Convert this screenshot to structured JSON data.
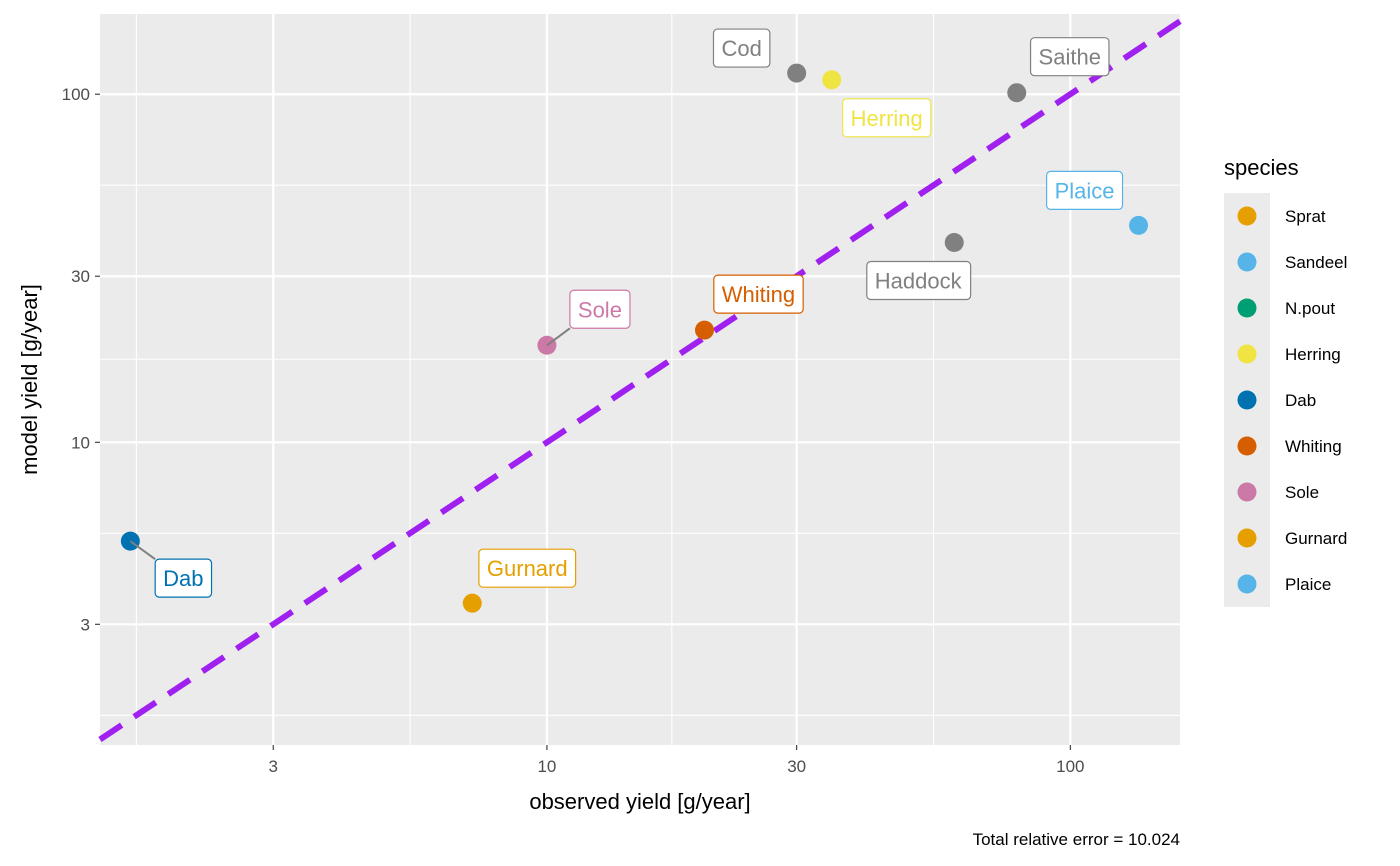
{
  "chart_data": {
    "type": "scatter",
    "title": "",
    "xlabel": "observed yield [g/year]",
    "ylabel": "model yield [g/year]",
    "caption": "Total relative error = 10.024",
    "x_scale": "log",
    "y_scale": "log",
    "xlim": [
      1.4,
      162
    ],
    "ylim": [
      1.35,
      170
    ],
    "x_ticks": [
      3,
      10,
      30,
      100
    ],
    "y_ticks": [
      3,
      10,
      30,
      100
    ],
    "x_tick_labels": [
      "3",
      "10",
      "30",
      "100"
    ],
    "y_tick_labels": [
      "3",
      "10",
      "30",
      "100"
    ],
    "grid": true,
    "reference_line": {
      "kind": "identity",
      "style": "dashed",
      "color": "#a020f0"
    },
    "legend": {
      "title": "species",
      "position": "right",
      "entries": [
        {
          "label": "Sprat",
          "color": "#E69F00"
        },
        {
          "label": "Sandeel",
          "color": "#56B4E9"
        },
        {
          "label": "N.pout",
          "color": "#009E73"
        },
        {
          "label": "Herring",
          "color": "#F0E442"
        },
        {
          "label": "Dab",
          "color": "#0072B2"
        },
        {
          "label": "Whiting",
          "color": "#D55E00"
        },
        {
          "label": "Sole",
          "color": "#CC79A7"
        },
        {
          "label": "Gurnard",
          "color": "#E69F00"
        },
        {
          "label": "Plaice",
          "color": "#56B4E9"
        }
      ]
    },
    "points": [
      {
        "label": "Cod",
        "x": 30,
        "y": 115,
        "color": "#808080"
      },
      {
        "label": "Herring",
        "x": 35,
        "y": 110,
        "color": "#F0E442"
      },
      {
        "label": "Saithe",
        "x": 79,
        "y": 101,
        "color": "#808080"
      },
      {
        "label": "Plaice",
        "x": 135,
        "y": 42,
        "color": "#56B4E9"
      },
      {
        "label": "Haddock",
        "x": 60,
        "y": 37.5,
        "color": "#808080"
      },
      {
        "label": "Whiting",
        "x": 20,
        "y": 21,
        "color": "#D55E00"
      },
      {
        "label": "Sole",
        "x": 10,
        "y": 19,
        "color": "#CC79A7"
      },
      {
        "label": "Dab",
        "x": 1.6,
        "y": 5.2,
        "color": "#0072B2"
      },
      {
        "label": "Gurnard",
        "x": 7.2,
        "y": 3.45,
        "color": "#E69F00"
      }
    ]
  }
}
